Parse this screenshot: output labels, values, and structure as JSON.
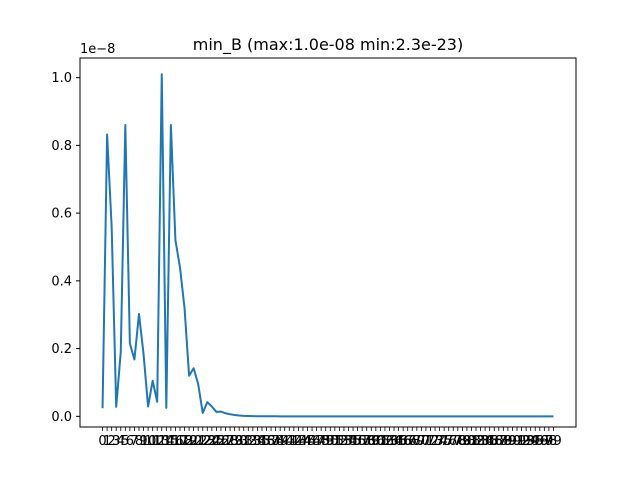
{
  "chart_data": {
    "type": "line",
    "title": "min_B (max:1.0e-08 min:2.3e-23)",
    "xlabel": "",
    "ylabel": "",
    "y_offset_label": "1e−8",
    "ylim": [
      -3.15e-10,
      1.058e-08
    ],
    "xlim": [
      -4.95,
      103.95
    ],
    "yticks": [
      0.0,
      2e-09,
      4e-09,
      6e-09,
      8e-09,
      1e-08
    ],
    "ytick_labels": [
      "0.0",
      "0.2",
      "0.4",
      "0.6",
      "0.8",
      "1.0"
    ],
    "series_color": "#1f77b4",
    "grid": false,
    "legend": "none",
    "series": [
      {
        "x": [
          0,
          1,
          2,
          3,
          4,
          5,
          6,
          7,
          8,
          9,
          10,
          11,
          12,
          13,
          14,
          15,
          16,
          17,
          18,
          19,
          20,
          21,
          22,
          23,
          24,
          25,
          26,
          27,
          28,
          29,
          30,
          31,
          32,
          33,
          34,
          35,
          36,
          37,
          38,
          39,
          40,
          41,
          42,
          43,
          44,
          45,
          46,
          47,
          48,
          49,
          50,
          51,
          52,
          53,
          54,
          55,
          56,
          57,
          58,
          59,
          60,
          61,
          62,
          63,
          64,
          65,
          66,
          67,
          68,
          69,
          70,
          71,
          72,
          73,
          74,
          75,
          76,
          77,
          78,
          79,
          80,
          81,
          82,
          83,
          84,
          85,
          86,
          87,
          88,
          89,
          90,
          91,
          92,
          93,
          94,
          95,
          96,
          97,
          98,
          99
        ],
        "values": [
          2.4e-10,
          8.32e-09,
          5.6e-09,
          2.8e-10,
          1.9e-09,
          8.6e-09,
          2.15e-09,
          1.68e-09,
          3.02e-09,
          1.84e-09,
          2.9e-10,
          1.05e-09,
          4.3e-10,
          1.01e-08,
          2.5e-10,
          8.6e-09,
          5.2e-09,
          4.4e-09,
          3.2e-09,
          1.2e-09,
          1.42e-09,
          9.5e-10,
          1e-10,
          4.2e-10,
          2.9e-10,
          1.3e-10,
          1.4e-10,
          9e-11,
          6e-11,
          4e-11,
          2.5e-11,
          1.5e-11,
          1e-11,
          6e-12,
          4e-12,
          2.5e-12,
          1.5e-12,
          1e-12,
          6e-13,
          4e-13,
          2.5e-13,
          1.5e-13,
          1e-13,
          6e-14,
          4e-14,
          2.5e-14,
          1.5e-14,
          1e-14,
          6e-15,
          4e-15,
          2.5e-15,
          1.5e-15,
          1e-15,
          6e-16,
          4e-16,
          2.5e-16,
          1.5e-16,
          1e-16,
          6e-17,
          4e-17,
          2.5e-17,
          1.5e-17,
          1e-17,
          6e-18,
          4e-18,
          2.5e-18,
          1.5e-18,
          1e-18,
          6e-19,
          4e-19,
          2.5e-19,
          1.5e-19,
          1e-19,
          6e-20,
          4e-20,
          2.5e-20,
          1.5e-20,
          1e-20,
          6e-21,
          4e-21,
          2.5e-21,
          1.5e-21,
          1e-21,
          6e-22,
          4e-22,
          2.5e-22,
          1.5e-22,
          1e-22,
          6e-23,
          4e-23,
          2.3e-23,
          2.3e-23,
          2.3e-23,
          2.3e-23,
          2.3e-23,
          2.3e-23,
          2.3e-23,
          2.3e-23,
          2.3e-23,
          2.3e-23
        ]
      }
    ]
  }
}
